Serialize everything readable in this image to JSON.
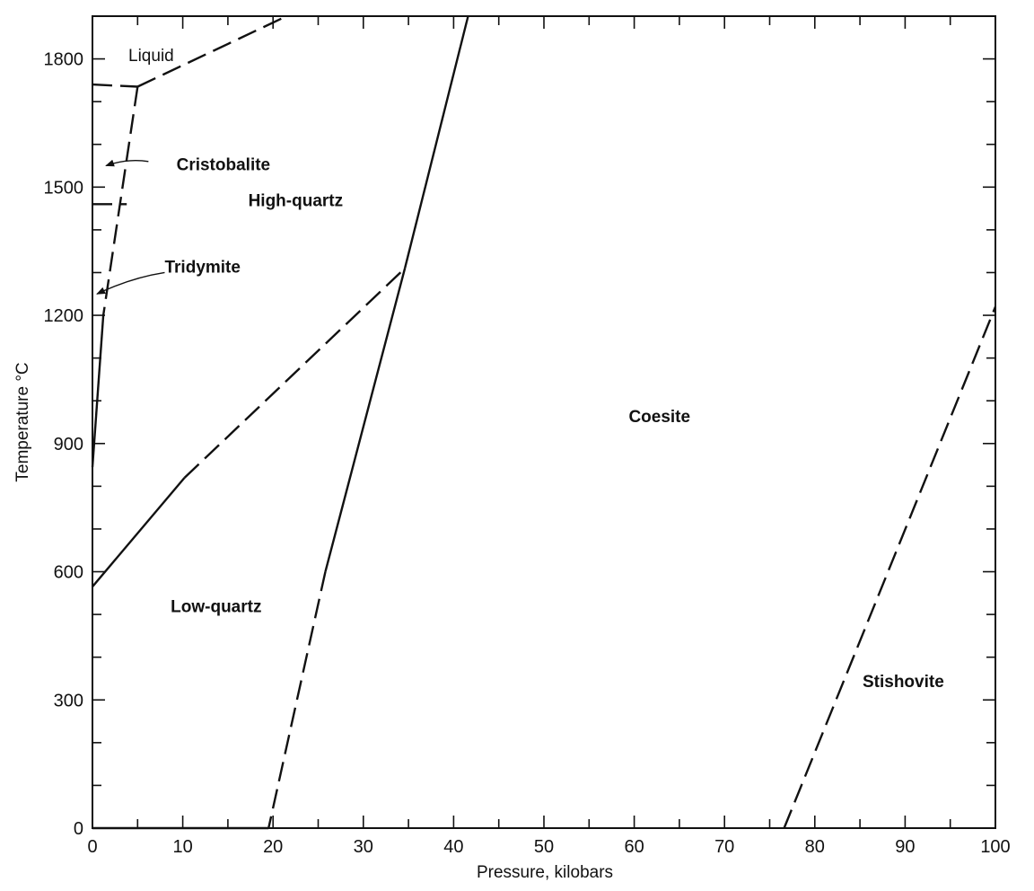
{
  "chart_data": {
    "type": "line",
    "xlabel": "Pressure, kilobars",
    "ylabel": "Temperature °C",
    "xlim": [
      0,
      100
    ],
    "ylim": [
      0,
      1900
    ],
    "x_ticks": [
      0,
      10,
      20,
      30,
      40,
      50,
      60,
      70,
      80,
      90,
      100
    ],
    "y_ticks": [
      0,
      300,
      600,
      900,
      1200,
      1500,
      1800
    ],
    "x_minor_step": 5,
    "y_minor_step": 100,
    "grid": false,
    "regions": [
      {
        "name": "Liquid",
        "x": 6.5,
        "y": 1795,
        "bold": false
      },
      {
        "name": "Cristobalite",
        "x": 14.5,
        "y": 1540,
        "bold": true
      },
      {
        "name": "High-quartz",
        "x": 22.5,
        "y": 1455,
        "bold": true
      },
      {
        "name": "Tridymite",
        "x": 12.2,
        "y": 1300,
        "bold": true
      },
      {
        "name": "Coesite",
        "x": 62.8,
        "y": 950,
        "bold": true
      },
      {
        "name": "Low-quartz",
        "x": 13.7,
        "y": 505,
        "bold": true
      },
      {
        "name": "Stishovite",
        "x": 89.8,
        "y": 330,
        "bold": true
      }
    ],
    "boundaries": [
      {
        "style": "dashed",
        "points": [
          [
            0,
            1740
          ],
          [
            5,
            1735
          ]
        ]
      },
      {
        "style": "dashed",
        "points": [
          [
            5,
            1735
          ],
          [
            21.5,
            1900
          ]
        ]
      },
      {
        "style": "dashed",
        "points": [
          [
            0,
            1460
          ],
          [
            3.8,
            1460
          ]
        ]
      },
      {
        "style": "dashed",
        "points": [
          [
            5,
            1735
          ],
          [
            1.2,
            1200
          ]
        ]
      },
      {
        "style": "solid",
        "points": [
          [
            1.2,
            1200
          ],
          [
            0,
            845
          ]
        ]
      },
      {
        "style": "solid",
        "points": [
          [
            0,
            565
          ],
          [
            10.2,
            820
          ]
        ]
      },
      {
        "style": "dashed",
        "points": [
          [
            10.2,
            820
          ],
          [
            34.6,
            1310
          ]
        ]
      },
      {
        "style": "solid",
        "points": [
          [
            34.6,
            1310
          ],
          [
            41.6,
            1900
          ]
        ]
      },
      {
        "style": "solid",
        "points": [
          [
            34.6,
            1310
          ],
          [
            25.8,
            600
          ]
        ]
      },
      {
        "style": "dashed",
        "points": [
          [
            25.8,
            600
          ],
          [
            19.5,
            0
          ]
        ]
      },
      {
        "style": "dashed",
        "points": [
          [
            76.6,
            0
          ],
          [
            100,
            1220
          ]
        ]
      },
      {
        "style": "solid",
        "points": [
          [
            0,
            0
          ],
          [
            19.5,
            0
          ]
        ]
      }
    ],
    "arrows": [
      {
        "label": "Cristobalite",
        "from": [
          6.2,
          1560
        ],
        "to": [
          1.5,
          1550
        ]
      },
      {
        "label": "Tridymite",
        "from": [
          8,
          1300
        ],
        "to": [
          0.5,
          1250
        ]
      }
    ]
  }
}
